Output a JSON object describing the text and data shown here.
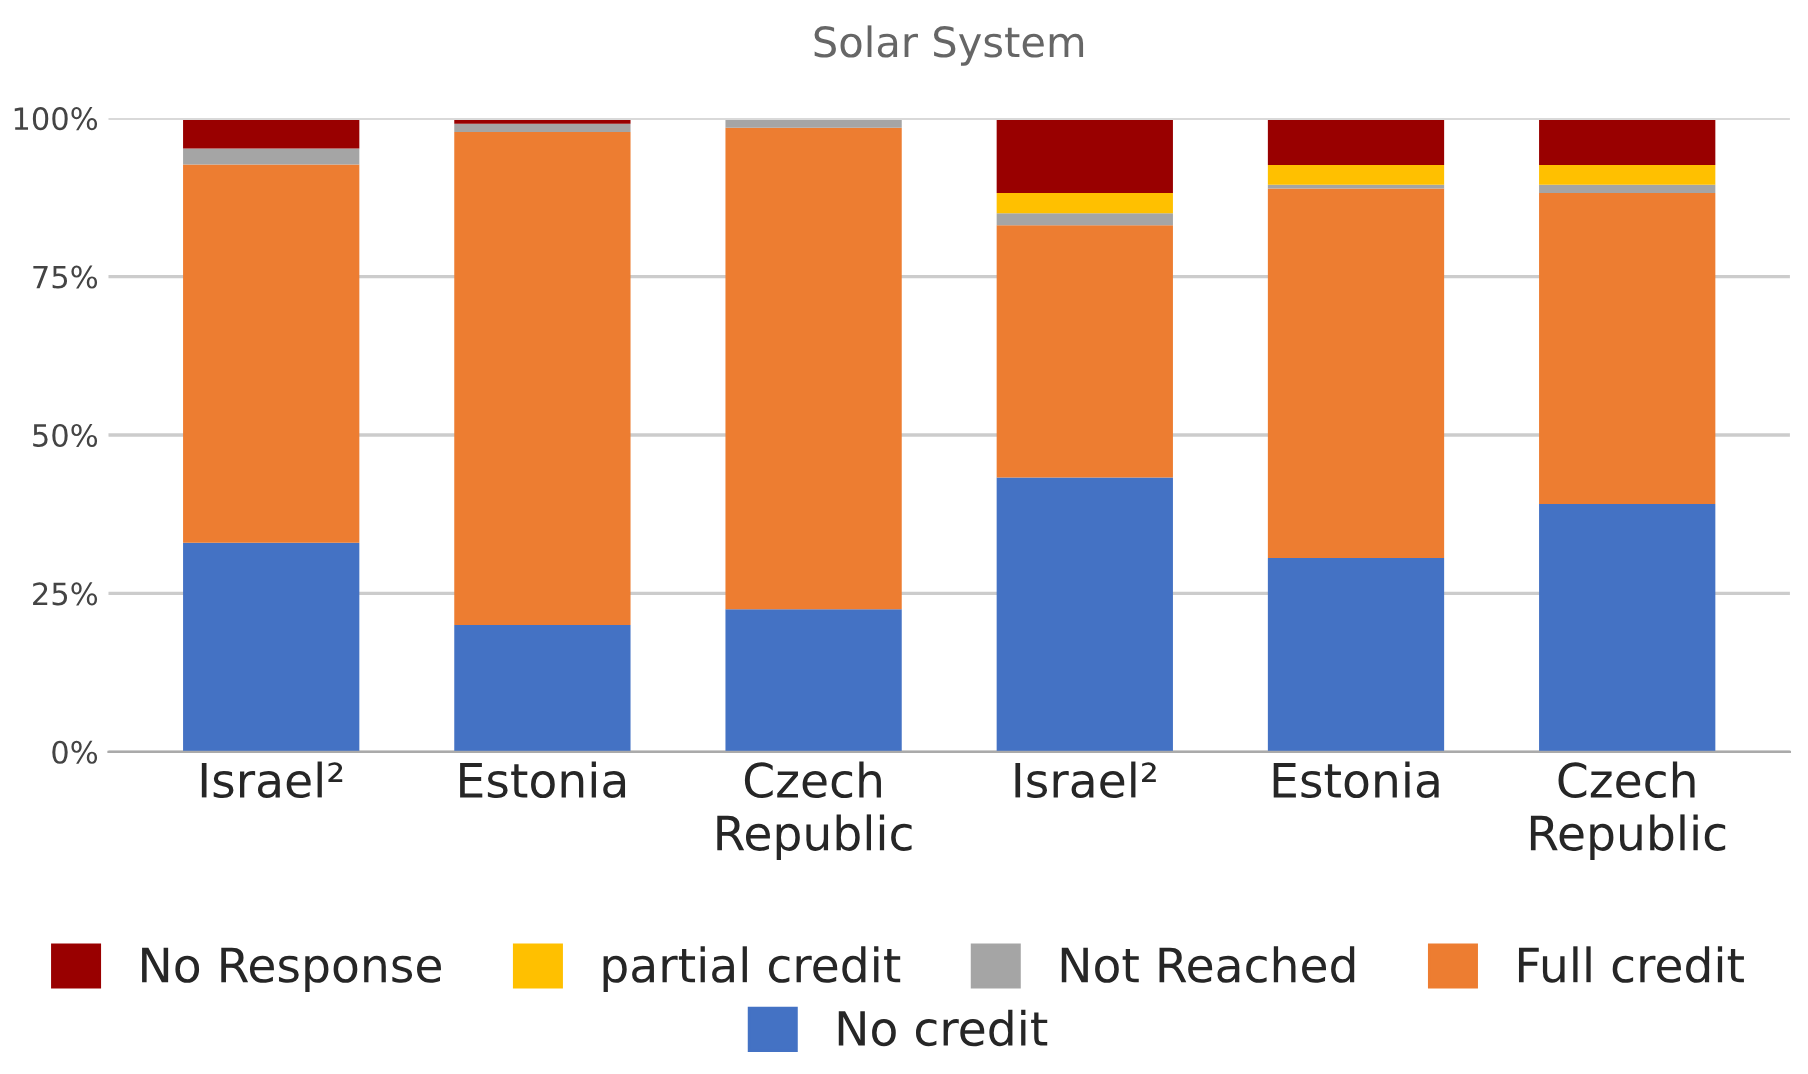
{
  "chart_data": {
    "type": "bar",
    "title": "Solar System",
    "stacked": true,
    "categories": [
      "Israel²",
      "Estonia",
      "Czech\nRepublic",
      "Israel²",
      "Estonia",
      "Czech\nRepublic"
    ],
    "series": [
      {
        "name": "No credit",
        "color": "#4472c4",
        "values": [
          33,
          20,
          22.5,
          43.3,
          30.6,
          39.1
        ]
      },
      {
        "name": "Full credit",
        "color": "#ed7d31",
        "values": [
          59.7,
          77.8,
          76,
          39.8,
          58.3,
          49.1
        ]
      },
      {
        "name": "Not Reached",
        "color": "#a5a5a5",
        "values": [
          2.5,
          1.3,
          1.2,
          1.9,
          0.6,
          1.3
        ]
      },
      {
        "name": "partial credit",
        "color": "#ffc000",
        "values": [
          0,
          0,
          0,
          3.2,
          3.1,
          3.1
        ]
      },
      {
        "name": "No Response",
        "color": "#990000",
        "values": [
          4.5,
          0.6,
          0,
          11.5,
          7.1,
          7.1
        ]
      }
    ],
    "ylim": [
      0,
      100
    ],
    "yticks": [
      {
        "value": 0,
        "label": "0%"
      },
      {
        "value": 25,
        "label": "25%"
      },
      {
        "value": 50,
        "label": "50%"
      },
      {
        "value": 75,
        "label": "75%"
      },
      {
        "value": 100,
        "label": "100%"
      }
    ],
    "grid": "y",
    "legend": "bottom"
  }
}
